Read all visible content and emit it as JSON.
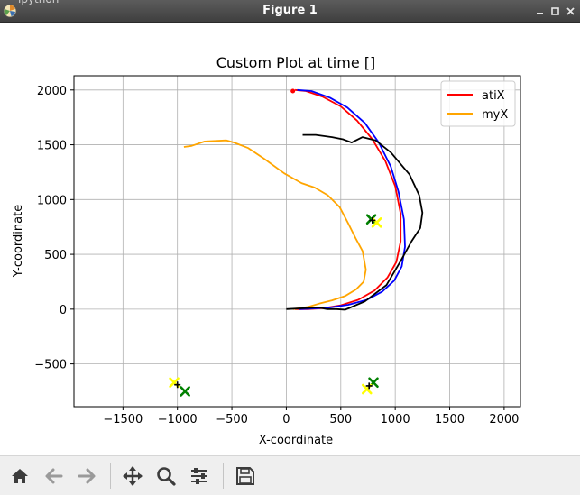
{
  "window": {
    "title": "Figure 1",
    "ghost_title": "ipython"
  },
  "chart_data": {
    "type": "line",
    "title": "Custom Plot at time []",
    "xlabel": "X-coordinate",
    "ylabel": "Y-coordinate",
    "xlim": [
      -1950,
      2150
    ],
    "ylim": [
      -890,
      2130
    ],
    "grid": true,
    "legend_position": "top-right",
    "x_ticks": [
      -1500,
      -1000,
      -500,
      0,
      500,
      1000,
      1500,
      2000
    ],
    "y_ticks": [
      -500,
      0,
      500,
      1000,
      1500,
      2000
    ],
    "x_tick_labels": [
      "−1500",
      "−1000",
      "−500",
      "0",
      "500",
      "1000",
      "1500",
      "2000"
    ],
    "y_tick_labels": [
      "−500",
      "0",
      "500",
      "1000",
      "1500",
      "2000"
    ],
    "series": [
      {
        "name": "atiX",
        "color": "#ff0000",
        "in_legend": true,
        "x": [
          80,
          180,
          330,
          500,
          650,
          790,
          910,
          1000,
          1050,
          1050,
          1010,
          930,
          810,
          660,
          500,
          350,
          200,
          80
        ],
        "y": [
          2000,
          1990,
          1940,
          1850,
          1720,
          1550,
          1350,
          1120,
          870,
          620,
          430,
          290,
          170,
          85,
          35,
          10,
          0,
          0
        ]
      },
      {
        "name": "myX",
        "color": "#ffa500",
        "in_legend": true,
        "x": [
          -940,
          -870,
          -750,
          -550,
          -480,
          -350,
          -200,
          -20,
          140,
          260,
          380,
          490,
          570,
          640,
          700,
          730,
          710,
          640,
          540,
          420,
          300,
          200,
          100,
          60
        ],
        "y": [
          1480,
          1490,
          1530,
          1540,
          1520,
          1470,
          1370,
          1240,
          1150,
          1110,
          1040,
          930,
          780,
          640,
          530,
          360,
          250,
          180,
          120,
          80,
          50,
          20,
          5,
          0
        ]
      },
      {
        "name": "",
        "color": "#0000ff",
        "in_legend": false,
        "x": [
          100,
          230,
          400,
          560,
          720,
          850,
          960,
          1030,
          1080,
          1090,
          1060,
          990,
          880,
          740,
          570,
          400,
          240,
          120
        ],
        "y": [
          2000,
          1990,
          1930,
          1840,
          1700,
          1520,
          1300,
          1070,
          820,
          570,
          390,
          260,
          160,
          85,
          40,
          15,
          5,
          0
        ]
      },
      {
        "name": "",
        "color": "#000000",
        "in_legend": false,
        "x": [
          0,
          100,
          200,
          300,
          370,
          460,
          540,
          720,
          920,
          1050,
          1150,
          1230,
          1250,
          1220,
          1130,
          960,
          820,
          700,
          600,
          520,
          420,
          270,
          150
        ],
        "y": [
          0,
          5,
          10,
          15,
          0,
          0,
          -5,
          70,
          220,
          440,
          620,
          740,
          880,
          1040,
          1230,
          1430,
          1540,
          1570,
          1520,
          1550,
          1570,
          1590,
          1590
        ]
      }
    ],
    "markers": [
      {
        "shape": "x",
        "color": "#008000",
        "x": [
          -930,
          800,
          780
        ],
        "y": [
          -750,
          -670,
          820
        ]
      },
      {
        "shape": "x",
        "color": "#ffff00",
        "x": [
          -1030,
          830,
          740
        ],
        "y": [
          -670,
          790,
          -730
        ]
      },
      {
        "shape": "plus",
        "color": "#000000",
        "x": [
          -1000,
          790,
          760
        ],
        "y": [
          -690,
          810,
          -700
        ]
      },
      {
        "shape": "dot",
        "color": "#ff0000",
        "x": [
          60
        ],
        "y": [
          1990
        ]
      }
    ]
  },
  "toolbar": {
    "buttons": [
      {
        "name": "home-button",
        "icon": "home-icon"
      },
      {
        "name": "back-button",
        "icon": "arrow-left-icon"
      },
      {
        "name": "forward-button",
        "icon": "arrow-right-icon"
      },
      {
        "name": "pan-button",
        "icon": "move-icon"
      },
      {
        "name": "zoom-button",
        "icon": "magnifier-icon"
      },
      {
        "name": "configure-subplots-button",
        "icon": "sliders-icon"
      },
      {
        "name": "save-button",
        "icon": "floppy-disk-icon"
      }
    ]
  }
}
